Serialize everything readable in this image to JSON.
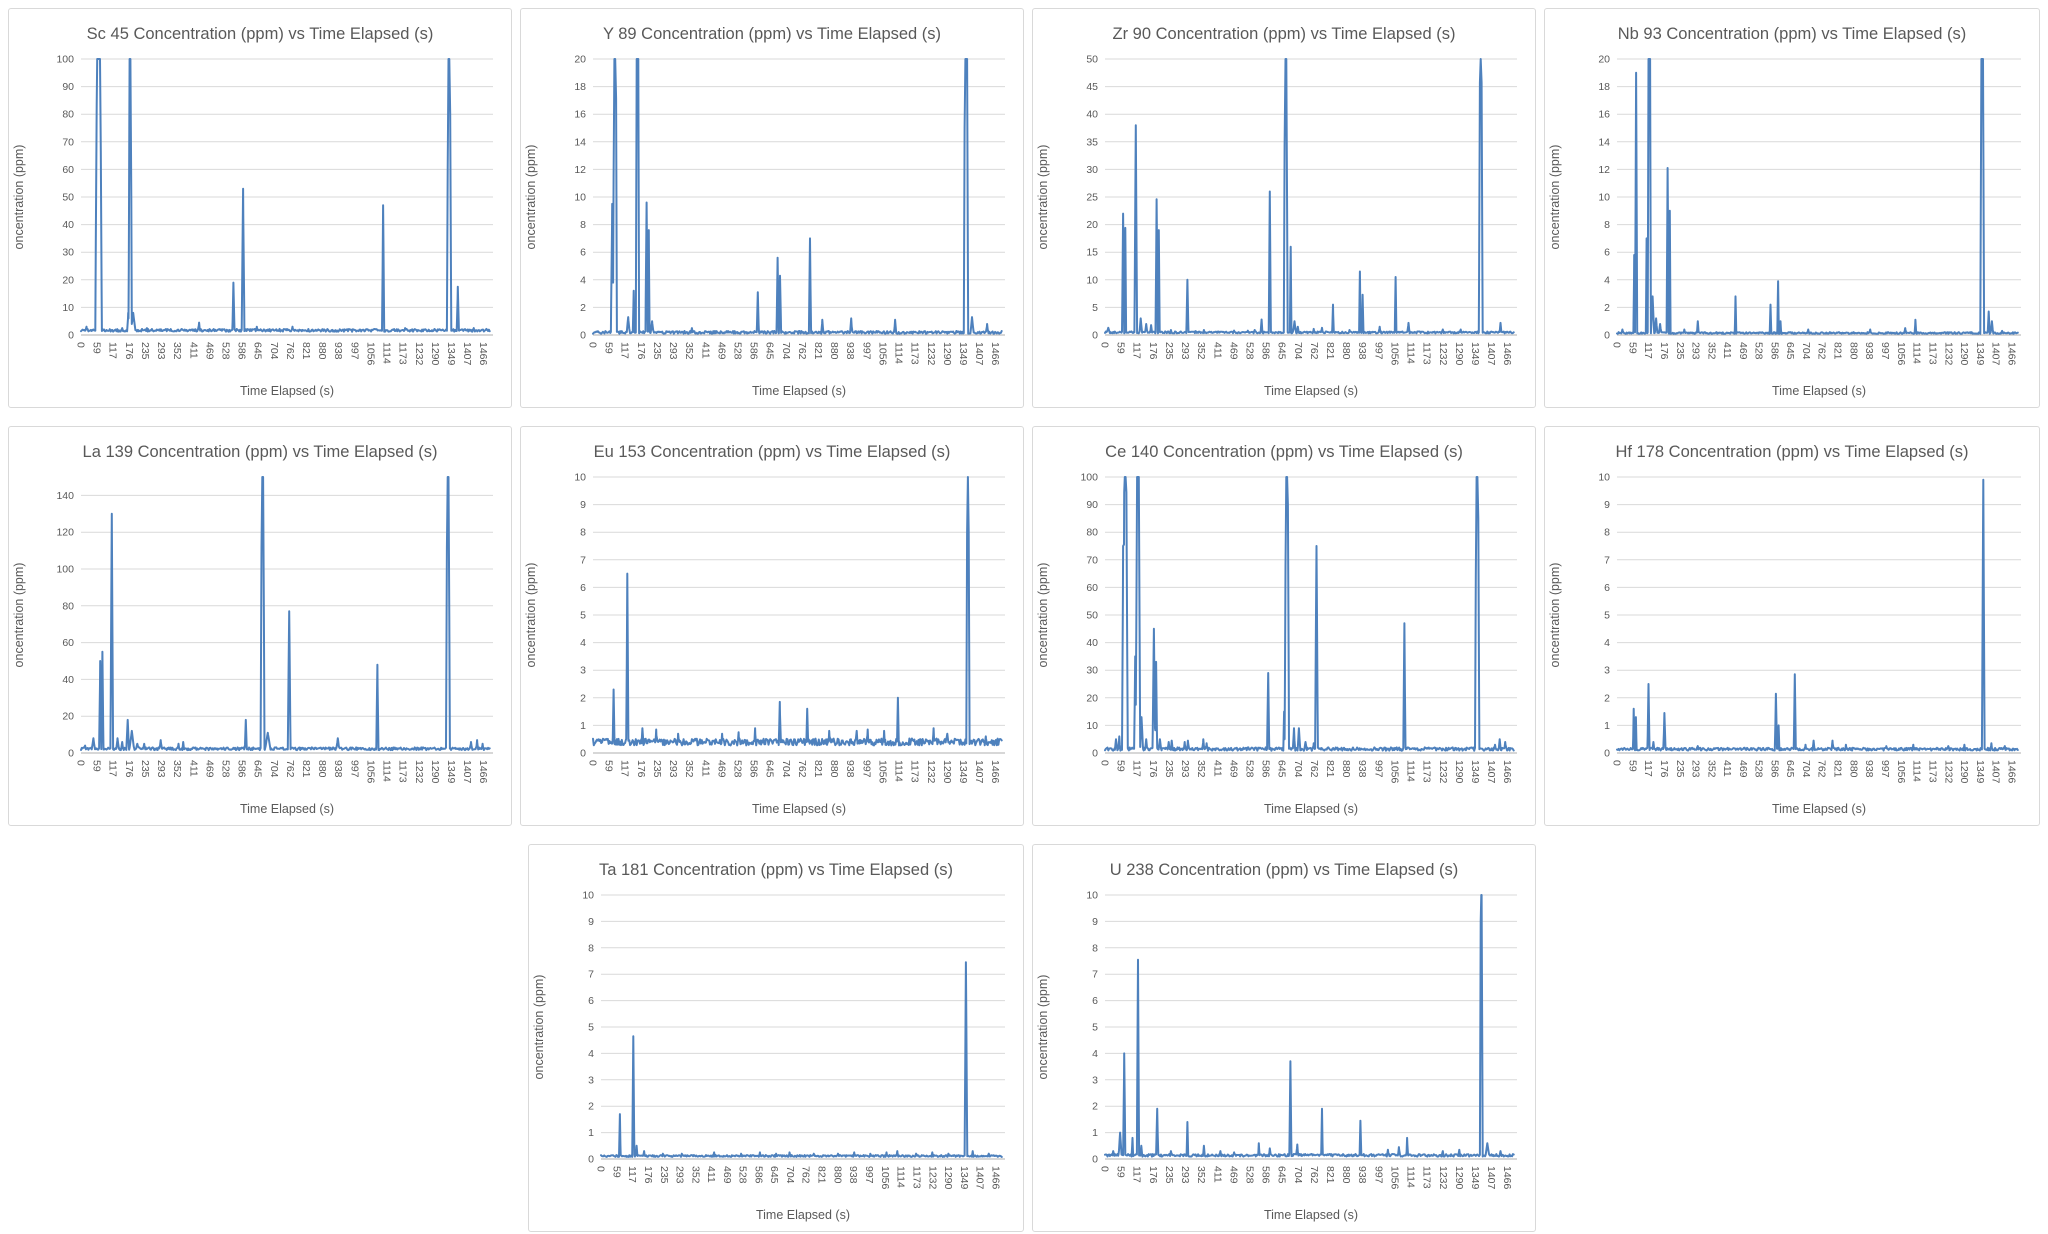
{
  "styles": {
    "line_color": "#4E81BD",
    "grid_color": "#D9D9D9",
    "axis_color": "#BFBFBF",
    "text_color": "#595959",
    "card_border_color": "#D9D9D9",
    "background": "#FFFFFF"
  },
  "y_axis_label": "oncentration (ppm)",
  "x_axis": {
    "label": "Time Elapsed (s)",
    "ticks": [
      0,
      59,
      117,
      176,
      235,
      293,
      352,
      411,
      469,
      528,
      586,
      645,
      704,
      762,
      821,
      880,
      938,
      997,
      1056,
      1114,
      1173,
      1232,
      1290,
      1349,
      1407,
      1466
    ],
    "max": 1500
  },
  "chart_data": [
    {
      "type": "line",
      "title": "Sc 45 Concentration (ppm) vs Time Elapsed (s)",
      "xlabel": "Time Elapsed (s)",
      "ylabel": "oncentration (ppm)",
      "y_max": 100,
      "y_ticks": [
        0,
        10,
        20,
        30,
        40,
        50,
        60,
        70,
        80,
        90,
        100
      ],
      "baseline": 1.5,
      "noise": 1.0,
      "seed": 1,
      "peaks": [
        [
          20,
          3
        ],
        [
          55,
          6,
          4
        ],
        [
          64,
          200,
          12
        ],
        [
          150,
          2.5
        ],
        [
          172,
          8,
          4
        ],
        [
          179,
          150,
          6
        ],
        [
          190,
          8,
          10
        ],
        [
          240,
          2.5
        ],
        [
          430,
          4.5,
          4
        ],
        [
          555,
          19,
          4
        ],
        [
          590,
          53,
          5
        ],
        [
          640,
          3
        ],
        [
          770,
          3
        ],
        [
          1100,
          47,
          4
        ],
        [
          1180,
          2.5
        ],
        [
          1340,
          160,
          8
        ],
        [
          1372,
          17.5,
          4
        ],
        [
          1430,
          2.5
        ]
      ]
    },
    {
      "type": "line",
      "title": "Y 89 Concentration (ppm) vs Time Elapsed (s)",
      "xlabel": "Time Elapsed (s)",
      "ylabel": "oncentration (ppm)",
      "y_max": 20,
      "y_ticks": [
        0,
        2,
        4,
        6,
        8,
        10,
        12,
        14,
        16,
        18,
        20
      ],
      "baseline": 0.15,
      "noise": 0.2,
      "seed": 2,
      "peaks": [
        [
          70,
          9.5,
          5
        ],
        [
          80,
          40,
          7
        ],
        [
          128,
          1.3,
          6
        ],
        [
          148,
          3.2,
          3
        ],
        [
          162,
          45,
          6
        ],
        [
          195,
          9.6,
          4
        ],
        [
          203,
          7.6,
          3
        ],
        [
          215,
          1,
          6
        ],
        [
          360,
          0.5
        ],
        [
          600,
          3.1,
          4
        ],
        [
          672,
          5.6,
          4
        ],
        [
          681,
          4.3
        ],
        [
          790,
          7,
          4
        ],
        [
          835,
          1.1
        ],
        [
          940,
          1.2
        ],
        [
          1100,
          1.1
        ],
        [
          1358,
          40,
          8
        ],
        [
          1380,
          1.3,
          6
        ],
        [
          1435,
          0.8
        ]
      ]
    },
    {
      "type": "line",
      "title": "Zr 90 Concentration (ppm) vs Time Elapsed (s)",
      "xlabel": "Time Elapsed (s)",
      "ylabel": "oncentration (ppm)",
      "y_max": 50,
      "y_ticks": [
        0,
        5,
        10,
        15,
        20,
        25,
        30,
        35,
        40,
        45,
        50
      ],
      "baseline": 0.4,
      "noise": 0.35,
      "seed": 3,
      "peaks": [
        [
          12,
          1.3,
          8
        ],
        [
          66,
          22,
          4
        ],
        [
          74,
          19.4,
          3
        ],
        [
          112,
          38,
          5
        ],
        [
          130,
          3,
          5
        ],
        [
          150,
          2,
          5
        ],
        [
          168,
          1.8
        ],
        [
          188,
          24.6,
          4
        ],
        [
          196,
          19,
          3
        ],
        [
          240,
          0.9
        ],
        [
          300,
          10,
          4
        ],
        [
          330,
          0.7
        ],
        [
          360,
          0.9
        ],
        [
          410,
          0.6
        ],
        [
          470,
          0.8
        ],
        [
          520,
          0.8
        ],
        [
          545,
          0.9
        ],
        [
          570,
          2.8,
          3
        ],
        [
          600,
          26,
          4
        ],
        [
          658,
          80,
          7
        ],
        [
          676,
          16,
          3
        ],
        [
          690,
          2.5,
          6
        ],
        [
          702,
          1.5
        ],
        [
          760,
          1.1
        ],
        [
          790,
          1.3
        ],
        [
          830,
          5.5,
          3
        ],
        [
          890,
          0.9
        ],
        [
          928,
          11.5,
          3
        ],
        [
          938,
          7.3,
          3
        ],
        [
          1000,
          1.5
        ],
        [
          1058,
          10.5,
          3
        ],
        [
          1105,
          2.2,
          4
        ],
        [
          1230,
          1
        ],
        [
          1295,
          1
        ],
        [
          1368,
          80,
          7
        ],
        [
          1440,
          2.2,
          4
        ]
      ]
    },
    {
      "type": "line",
      "title": "Nb 93 Concentration (ppm) vs Time Elapsed (s)",
      "xlabel": "Time Elapsed (s)",
      "ylabel": "oncentration (ppm)",
      "y_max": 20,
      "y_ticks": [
        0,
        2,
        4,
        6,
        8,
        10,
        12,
        14,
        16,
        18,
        20
      ],
      "baseline": 0.12,
      "noise": 0.12,
      "seed": 4,
      "peaks": [
        [
          20,
          0.4
        ],
        [
          64,
          5.8,
          3
        ],
        [
          71,
          19,
          4
        ],
        [
          110,
          7,
          3
        ],
        [
          120,
          40,
          6
        ],
        [
          132,
          2.8,
          6
        ],
        [
          145,
          1.2,
          5
        ],
        [
          160,
          0.8,
          5
        ],
        [
          188,
          12.1,
          4
        ],
        [
          196,
          9,
          3
        ],
        [
          250,
          0.4
        ],
        [
          300,
          1,
          3
        ],
        [
          440,
          2.8,
          3
        ],
        [
          570,
          2.2,
          3
        ],
        [
          598,
          3.9,
          3
        ],
        [
          607,
          1,
          3
        ],
        [
          710,
          0.4
        ],
        [
          790,
          0.2
        ],
        [
          940,
          0.4
        ],
        [
          1070,
          0.5
        ],
        [
          1108,
          1.1,
          3
        ],
        [
          1356,
          40,
          7
        ],
        [
          1380,
          1.7,
          4
        ],
        [
          1392,
          1,
          5
        ],
        [
          1430,
          0.3
        ]
      ]
    },
    {
      "type": "line",
      "title": "La 139 Concentration (ppm) vs Time Elapsed (s)",
      "xlabel": "Time Elapsed (s)",
      "ylabel": "oncentration (ppm)",
      "y_max": 150,
      "y_ticks": [
        0,
        20,
        40,
        60,
        80,
        100,
        120,
        140
      ],
      "baseline": 2,
      "noise": 1.5,
      "seed": 5,
      "peaks": [
        [
          15,
          4,
          6
        ],
        [
          45,
          8,
          7
        ],
        [
          70,
          50,
          4
        ],
        [
          78,
          55,
          4
        ],
        [
          112,
          130,
          5
        ],
        [
          133,
          8,
          6
        ],
        [
          150,
          6,
          5
        ],
        [
          170,
          18,
          5
        ],
        [
          185,
          12,
          10
        ],
        [
          205,
          5,
          8
        ],
        [
          230,
          5,
          6
        ],
        [
          260,
          3
        ],
        [
          290,
          7,
          5
        ],
        [
          320,
          3
        ],
        [
          355,
          5,
          4
        ],
        [
          372,
          6,
          4
        ],
        [
          600,
          18,
          4
        ],
        [
          661,
          260,
          7
        ],
        [
          680,
          11,
          12
        ],
        [
          758,
          77,
          5
        ],
        [
          935,
          8,
          7
        ],
        [
          1079,
          48,
          4
        ],
        [
          1336,
          260,
          7
        ],
        [
          1420,
          6,
          5
        ],
        [
          1442,
          7,
          4
        ],
        [
          1462,
          5,
          4
        ]
      ]
    },
    {
      "type": "line",
      "title": "Eu 153 Concentration (ppm) vs Time Elapsed (s)",
      "xlabel": "Time Elapsed (s)",
      "ylabel": "oncentration (ppm)",
      "y_max": 10,
      "y_ticks": [
        0,
        1,
        2,
        3,
        4,
        5,
        6,
        7,
        8,
        9,
        10
      ],
      "baseline": 0.35,
      "noise": 0.25,
      "seed": 6,
      "peaks": [
        [
          75,
          2.3,
          4
        ],
        [
          125,
          6.5,
          4
        ],
        [
          180,
          0.9
        ],
        [
          230,
          0.85
        ],
        [
          310,
          0.7
        ],
        [
          470,
          0.7
        ],
        [
          530,
          0.75
        ],
        [
          590,
          0.9
        ],
        [
          680,
          1.85,
          4
        ],
        [
          780,
          1.6,
          4
        ],
        [
          860,
          0.8
        ],
        [
          960,
          0.8
        ],
        [
          1000,
          0.85
        ],
        [
          1060,
          0.8
        ],
        [
          1110,
          2,
          4
        ],
        [
          1240,
          0.9
        ],
        [
          1290,
          0.7
        ],
        [
          1365,
          16,
          6
        ],
        [
          1430,
          0.6
        ]
      ]
    },
    {
      "type": "line",
      "title": "Ce 140 Concentration (ppm) vs Time Elapsed (s)",
      "xlabel": "Time Elapsed (s)",
      "ylabel": "oncentration (ppm)",
      "y_max": 100,
      "y_ticks": [
        0,
        10,
        20,
        30,
        40,
        50,
        60,
        70,
        80,
        90,
        100
      ],
      "baseline": 1.2,
      "noise": 1.2,
      "seed": 7,
      "peaks": [
        [
          40,
          5,
          5
        ],
        [
          52,
          6,
          4
        ],
        [
          66,
          75,
          4
        ],
        [
          74,
          170,
          9
        ],
        [
          110,
          35,
          4
        ],
        [
          120,
          180,
          8
        ],
        [
          133,
          13,
          6
        ],
        [
          150,
          5,
          5
        ],
        [
          178,
          45,
          5
        ],
        [
          186,
          33,
          4
        ],
        [
          200,
          5,
          6
        ],
        [
          232,
          4,
          4
        ],
        [
          243,
          4.5,
          4
        ],
        [
          290,
          4,
          4
        ],
        [
          302,
          4.5,
          4
        ],
        [
          358,
          5,
          4
        ],
        [
          370,
          3.5,
          4
        ],
        [
          594,
          29,
          4
        ],
        [
          652,
          15,
          3
        ],
        [
          662,
          180,
          8
        ],
        [
          688,
          9,
          4
        ],
        [
          706,
          9,
          5
        ],
        [
          730,
          4,
          6
        ],
        [
          760,
          3.5,
          4
        ],
        [
          770,
          75,
          5
        ],
        [
          1090,
          47,
          4
        ],
        [
          1355,
          170,
          8
        ],
        [
          1420,
          3,
          5
        ],
        [
          1437,
          5,
          4
        ],
        [
          1457,
          4,
          4
        ]
      ]
    },
    {
      "type": "line",
      "title": "Hf 178 Concentration (ppm) vs Time Elapsed (s)",
      "xlabel": "Time Elapsed (s)",
      "ylabel": "oncentration (ppm)",
      "y_max": 10,
      "y_ticks": [
        0,
        1,
        2,
        3,
        4,
        5,
        6,
        7,
        8,
        9,
        10
      ],
      "baseline": 0.12,
      "noise": 0.1,
      "seed": 8,
      "peaks": [
        [
          62,
          1.6,
          3
        ],
        [
          70,
          1.3,
          3
        ],
        [
          117,
          2.5,
          4
        ],
        [
          135,
          0.4
        ],
        [
          176,
          1.45,
          4
        ],
        [
          300,
          0.25
        ],
        [
          590,
          2.15,
          4
        ],
        [
          600,
          1,
          3
        ],
        [
          660,
          2.85,
          4
        ],
        [
          700,
          0.3
        ],
        [
          730,
          0.45
        ],
        [
          800,
          0.45
        ],
        [
          850,
          0.3
        ],
        [
          1000,
          0.25
        ],
        [
          1100,
          0.3
        ],
        [
          1230,
          0.25
        ],
        [
          1290,
          0.3
        ],
        [
          1360,
          9.9,
          5
        ],
        [
          1390,
          0.35
        ],
        [
          1440,
          0.25
        ]
      ]
    },
    {
      "type": "line",
      "title": "Ta 181 Concentration (ppm) vs Time Elapsed (s)",
      "xlabel": "Time Elapsed (s)",
      "ylabel": "oncentration (ppm)",
      "y_max": 10,
      "y_ticks": [
        0,
        1,
        2,
        3,
        4,
        5,
        6,
        7,
        8,
        9,
        10
      ],
      "baseline": 0.1,
      "noise": 0.07,
      "seed": 9,
      "peaks": [
        [
          70,
          1.7,
          3
        ],
        [
          120,
          4.65,
          4
        ],
        [
          132,
          0.5,
          4
        ],
        [
          160,
          0.3
        ],
        [
          230,
          0.2
        ],
        [
          300,
          0.2
        ],
        [
          420,
          0.25
        ],
        [
          520,
          0.2
        ],
        [
          590,
          0.25
        ],
        [
          650,
          0.2
        ],
        [
          700,
          0.25
        ],
        [
          790,
          0.2
        ],
        [
          880,
          0.2
        ],
        [
          940,
          0.25
        ],
        [
          1000,
          0.2
        ],
        [
          1060,
          0.25
        ],
        [
          1100,
          0.3
        ],
        [
          1170,
          0.2
        ],
        [
          1230,
          0.25
        ],
        [
          1290,
          0.2
        ],
        [
          1355,
          7.45,
          5
        ],
        [
          1380,
          0.3
        ],
        [
          1440,
          0.2
        ]
      ]
    },
    {
      "type": "line",
      "title": "U 238 Concentration (ppm) vs Time Elapsed (s)",
      "xlabel": "Time Elapsed (s)",
      "ylabel": "oncentration (ppm)",
      "y_max": 10,
      "y_ticks": [
        0,
        1,
        2,
        3,
        4,
        5,
        6,
        7,
        8,
        9,
        10
      ],
      "baseline": 0.12,
      "noise": 0.1,
      "seed": 10,
      "peaks": [
        [
          30,
          0.3
        ],
        [
          55,
          1,
          6
        ],
        [
          70,
          4,
          4
        ],
        [
          100,
          0.8,
          3
        ],
        [
          120,
          7.55,
          4
        ],
        [
          132,
          0.5,
          4
        ],
        [
          190,
          1.9,
          4
        ],
        [
          240,
          0.3
        ],
        [
          300,
          1.4,
          3
        ],
        [
          360,
          0.5
        ],
        [
          420,
          0.3
        ],
        [
          470,
          0.25
        ],
        [
          560,
          0.6,
          3
        ],
        [
          600,
          0.4
        ],
        [
          675,
          3.7,
          4
        ],
        [
          700,
          0.55,
          4
        ],
        [
          790,
          1.9,
          3
        ],
        [
          930,
          1.45,
          3
        ],
        [
          1030,
          0.35
        ],
        [
          1070,
          0.45
        ],
        [
          1100,
          0.8,
          3
        ],
        [
          1230,
          0.3
        ],
        [
          1290,
          0.35
        ],
        [
          1370,
          15,
          5
        ],
        [
          1392,
          0.6,
          8
        ],
        [
          1440,
          0.3
        ]
      ]
    }
  ]
}
